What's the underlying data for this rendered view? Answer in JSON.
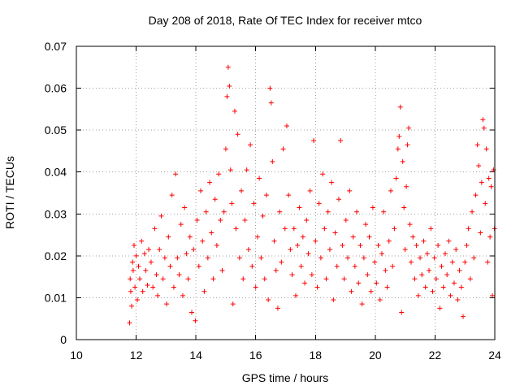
{
  "chart_data": {
    "type": "scatter",
    "title": "Day 208 of 2018, Rate Of TEC Index for receiver mtco",
    "xlabel": "GPS time / hours",
    "ylabel": "ROTI / TECUs",
    "xlim": [
      10,
      24
    ],
    "ylim": [
      0,
      0.07
    ],
    "xticks": [
      10,
      12,
      14,
      16,
      18,
      20,
      22,
      24
    ],
    "yticks": [
      0,
      0.01,
      0.02,
      0.03,
      0.04,
      0.05,
      0.06,
      0.07
    ],
    "xtick_labels": [
      "10",
      "12",
      "14",
      "16",
      "18",
      "20",
      "22",
      "24"
    ],
    "ytick_labels": [
      "0",
      "0.01",
      "0.02",
      "0.03",
      "0.04",
      "0.05",
      "0.06",
      "0.07"
    ],
    "grid": true,
    "marker": "plus",
    "color": "#ff0000",
    "series": [
      {
        "name": "ROTI",
        "points": [
          [
            11.78,
            0.004
          ],
          [
            11.8,
            0.0145
          ],
          [
            11.82,
            0.0115
          ],
          [
            11.85,
            0.008
          ],
          [
            11.88,
            0.0185
          ],
          [
            11.9,
            0.0165
          ],
          [
            11.93,
            0.0225
          ],
          [
            11.96,
            0.0125
          ],
          [
            12.0,
            0.02
          ],
          [
            12.04,
            0.0095
          ],
          [
            12.08,
            0.0175
          ],
          [
            12.12,
            0.0145
          ],
          [
            12.18,
            0.0235
          ],
          [
            12.22,
            0.0115
          ],
          [
            12.28,
            0.0205
          ],
          [
            12.32,
            0.0165
          ],
          [
            12.38,
            0.013
          ],
          [
            12.42,
            0.0215
          ],
          [
            12.5,
            0.0185
          ],
          [
            12.56,
            0.0125
          ],
          [
            12.62,
            0.0265
          ],
          [
            12.68,
            0.0155
          ],
          [
            12.72,
            0.0105
          ],
          [
            12.78,
            0.0215
          ],
          [
            12.84,
            0.0295
          ],
          [
            12.9,
            0.0145
          ],
          [
            12.96,
            0.0195
          ],
          [
            13.02,
            0.0085
          ],
          [
            13.08,
            0.0245
          ],
          [
            13.14,
            0.0175
          ],
          [
            13.2,
            0.0345
          ],
          [
            13.26,
            0.0125
          ],
          [
            13.32,
            0.0395
          ],
          [
            13.38,
            0.0195
          ],
          [
            13.44,
            0.0155
          ],
          [
            13.5,
            0.0275
          ],
          [
            13.56,
            0.0105
          ],
          [
            13.62,
            0.0315
          ],
          [
            13.68,
            0.0205
          ],
          [
            13.74,
            0.0145
          ],
          [
            13.8,
            0.0245
          ],
          [
            13.86,
            0.0065
          ],
          [
            13.92,
            0.0215
          ],
          [
            13.98,
            0.0045
          ],
          [
            14.04,
            0.0285
          ],
          [
            14.1,
            0.0175
          ],
          [
            14.16,
            0.0355
          ],
          [
            14.22,
            0.0235
          ],
          [
            14.28,
            0.0115
          ],
          [
            14.34,
            0.0305
          ],
          [
            14.4,
            0.0195
          ],
          [
            14.46,
            0.0375
          ],
          [
            14.52,
            0.0255
          ],
          [
            14.58,
            0.0145
          ],
          [
            14.64,
            0.0335
          ],
          [
            14.7,
            0.0225
          ],
          [
            14.76,
            0.0395
          ],
          [
            14.82,
            0.0285
          ],
          [
            14.88,
            0.0165
          ],
          [
            14.94,
            0.0305
          ],
          [
            15.0,
            0.0455
          ],
          [
            15.04,
            0.058
          ],
          [
            15.08,
            0.065
          ],
          [
            15.12,
            0.0605
          ],
          [
            15.16,
            0.0405
          ],
          [
            15.2,
            0.0325
          ],
          [
            15.24,
            0.0085
          ],
          [
            15.3,
            0.0545
          ],
          [
            15.34,
            0.0265
          ],
          [
            15.4,
            0.049
          ],
          [
            15.46,
            0.0195
          ],
          [
            15.52,
            0.0355
          ],
          [
            15.58,
            0.0145
          ],
          [
            15.64,
            0.0285
          ],
          [
            15.7,
            0.0405
          ],
          [
            15.76,
            0.0215
          ],
          [
            15.82,
            0.0465
          ],
          [
            15.88,
            0.0175
          ],
          [
            15.94,
            0.0325
          ],
          [
            16.0,
            0.0125
          ],
          [
            16.06,
            0.0245
          ],
          [
            16.12,
            0.0385
          ],
          [
            16.18,
            0.0195
          ],
          [
            16.24,
            0.0295
          ],
          [
            16.3,
            0.0145
          ],
          [
            16.36,
            0.0345
          ],
          [
            16.42,
            0.0095
          ],
          [
            16.48,
            0.06
          ],
          [
            16.52,
            0.0565
          ],
          [
            16.56,
            0.0425
          ],
          [
            16.62,
            0.0235
          ],
          [
            16.68,
            0.0165
          ],
          [
            16.74,
            0.0075
          ],
          [
            16.8,
            0.0305
          ],
          [
            16.86,
            0.0185
          ],
          [
            16.92,
            0.0455
          ],
          [
            16.98,
            0.0265
          ],
          [
            17.04,
            0.051
          ],
          [
            17.1,
            0.0345
          ],
          [
            17.16,
            0.0215
          ],
          [
            17.22,
            0.0155
          ],
          [
            17.28,
            0.0265
          ],
          [
            17.34,
            0.0105
          ],
          [
            17.4,
            0.0225
          ],
          [
            17.46,
            0.0315
          ],
          [
            17.52,
            0.0175
          ],
          [
            17.58,
            0.0245
          ],
          [
            17.64,
            0.0135
          ],
          [
            17.7,
            0.0285
          ],
          [
            17.76,
            0.0205
          ],
          [
            17.82,
            0.0355
          ],
          [
            17.88,
            0.0155
          ],
          [
            17.94,
            0.0475
          ],
          [
            18.0,
            0.0235
          ],
          [
            18.06,
            0.0125
          ],
          [
            18.12,
            0.0325
          ],
          [
            18.18,
            0.0195
          ],
          [
            18.24,
            0.0395
          ],
          [
            18.3,
            0.0265
          ],
          [
            18.36,
            0.0145
          ],
          [
            18.42,
            0.0305
          ],
          [
            18.48,
            0.0215
          ],
          [
            18.54,
            0.0375
          ],
          [
            18.6,
            0.0095
          ],
          [
            18.66,
            0.0255
          ],
          [
            18.72,
            0.0175
          ],
          [
            18.78,
            0.0335
          ],
          [
            18.84,
            0.0475
          ],
          [
            18.9,
            0.0225
          ],
          [
            18.96,
            0.0145
          ],
          [
            19.02,
            0.0285
          ],
          [
            19.08,
            0.0195
          ],
          [
            19.14,
            0.0355
          ],
          [
            19.2,
            0.0115
          ],
          [
            19.26,
            0.0245
          ],
          [
            19.32,
            0.0175
          ],
          [
            19.38,
            0.0305
          ],
          [
            19.44,
            0.0135
          ],
          [
            19.5,
            0.0225
          ],
          [
            19.56,
            0.0085
          ],
          [
            19.62,
            0.0195
          ],
          [
            19.68,
            0.0275
          ],
          [
            19.74,
            0.0155
          ],
          [
            19.8,
            0.0245
          ],
          [
            19.86,
            0.0115
          ],
          [
            19.92,
            0.0315
          ],
          [
            19.98,
            0.0185
          ],
          [
            20.04,
            0.0135
          ],
          [
            20.1,
            0.0225
          ],
          [
            20.16,
            0.0095
          ],
          [
            20.22,
            0.0205
          ],
          [
            20.28,
            0.0305
          ],
          [
            20.34,
            0.0165
          ],
          [
            20.4,
            0.0125
          ],
          [
            20.46,
            0.0235
          ],
          [
            20.52,
            0.0355
          ],
          [
            20.58,
            0.0175
          ],
          [
            20.64,
            0.0265
          ],
          [
            20.7,
            0.0385
          ],
          [
            20.76,
            0.0455
          ],
          [
            20.8,
            0.0485
          ],
          [
            20.84,
            0.0555
          ],
          [
            20.88,
            0.0065
          ],
          [
            20.92,
            0.0425
          ],
          [
            20.96,
            0.0315
          ],
          [
            21.0,
            0.0215
          ],
          [
            21.04,
            0.0365
          ],
          [
            21.08,
            0.0465
          ],
          [
            21.12,
            0.0505
          ],
          [
            21.16,
            0.0275
          ],
          [
            21.2,
            0.0185
          ],
          [
            21.26,
            0.0245
          ],
          [
            21.32,
            0.0145
          ],
          [
            21.38,
            0.0225
          ],
          [
            21.44,
            0.0105
          ],
          [
            21.5,
            0.0195
          ],
          [
            21.56,
            0.0155
          ],
          [
            21.62,
            0.0235
          ],
          [
            21.68,
            0.0125
          ],
          [
            21.74,
            0.0205
          ],
          [
            21.8,
            0.0165
          ],
          [
            21.86,
            0.0265
          ],
          [
            21.92,
            0.0115
          ],
          [
            21.98,
            0.0195
          ],
          [
            22.04,
            0.0145
          ],
          [
            22.1,
            0.0225
          ],
          [
            22.16,
            0.0075
          ],
          [
            22.22,
            0.0175
          ],
          [
            22.28,
            0.0125
          ],
          [
            22.34,
            0.0205
          ],
          [
            22.4,
            0.0155
          ],
          [
            22.46,
            0.0235
          ],
          [
            22.52,
            0.0105
          ],
          [
            22.58,
            0.0185
          ],
          [
            22.64,
            0.0135
          ],
          [
            22.7,
            0.0215
          ],
          [
            22.76,
            0.0095
          ],
          [
            22.82,
            0.0165
          ],
          [
            22.88,
            0.0125
          ],
          [
            22.94,
            0.0055
          ],
          [
            23.0,
            0.0185
          ],
          [
            23.06,
            0.0225
          ],
          [
            23.12,
            0.0265
          ],
          [
            23.18,
            0.0145
          ],
          [
            23.24,
            0.0305
          ],
          [
            23.3,
            0.0195
          ],
          [
            23.36,
            0.0345
          ],
          [
            23.42,
            0.0465
          ],
          [
            23.46,
            0.0415
          ],
          [
            23.52,
            0.0255
          ],
          [
            23.56,
            0.0375
          ],
          [
            23.6,
            0.0525
          ],
          [
            23.64,
            0.0505
          ],
          [
            23.68,
            0.0325
          ],
          [
            23.72,
            0.0455
          ],
          [
            23.76,
            0.0185
          ],
          [
            23.8,
            0.0385
          ],
          [
            23.84,
            0.0245
          ],
          [
            23.88,
            0.0365
          ],
          [
            23.92,
            0.0105
          ],
          [
            23.96,
            0.0405
          ],
          [
            23.99,
            0.0265
          ]
        ]
      }
    ]
  }
}
